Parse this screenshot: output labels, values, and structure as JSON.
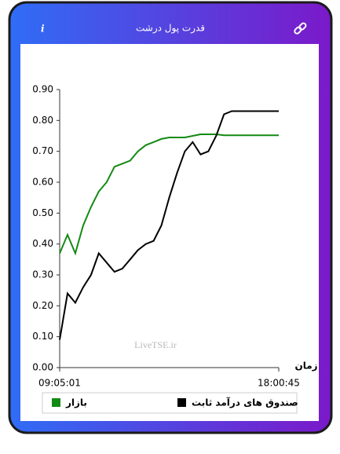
{
  "header": {
    "title": "قدرت پول درشت",
    "info_icon": "i"
  },
  "watermark": "LiveTSE.ir",
  "chart_data": {
    "type": "line",
    "x_label": "زمان",
    "categories": [
      "09:05:01",
      null,
      null,
      null,
      null,
      null,
      null,
      null,
      null,
      null,
      null,
      null,
      null,
      null,
      null,
      null,
      null,
      null,
      null,
      null,
      null,
      null,
      null,
      null,
      null,
      null,
      null,
      null,
      "18:00:45"
    ],
    "series": [
      {
        "name": "بازار",
        "color": "#138a13",
        "values": [
          0.37,
          0.43,
          0.37,
          0.46,
          0.52,
          0.57,
          0.6,
          0.65,
          0.66,
          0.67,
          0.7,
          0.72,
          0.73,
          0.74,
          0.745,
          0.745,
          0.745,
          0.75,
          0.755,
          0.755,
          0.755,
          0.752,
          0.752,
          0.752,
          0.752,
          0.752,
          0.752,
          0.752,
          0.752
        ]
      },
      {
        "name": "صندوق های درآمد ثابت",
        "color": "#000000",
        "values": [
          0.09,
          0.24,
          0.21,
          0.26,
          0.3,
          0.37,
          0.34,
          0.31,
          0.32,
          0.35,
          0.38,
          0.4,
          0.41,
          0.46,
          0.55,
          0.63,
          0.7,
          0.73,
          0.69,
          0.7,
          0.75,
          0.82,
          0.83,
          0.83,
          0.83,
          0.83,
          0.83,
          0.83,
          0.83
        ]
      }
    ],
    "ylim": [
      0,
      0.9
    ],
    "yticks": [
      {
        "value": 0,
        "label": "0.00"
      },
      {
        "value": 0.1,
        "label": "0.10"
      },
      {
        "value": 0.2,
        "label": "0.20"
      },
      {
        "value": 0.3,
        "label": "0.30"
      },
      {
        "value": 0.4,
        "label": "0.40"
      },
      {
        "value": 0.5,
        "label": "0.50"
      },
      {
        "value": 0.6,
        "label": "0.60"
      },
      {
        "value": 0.7,
        "label": "0.70"
      },
      {
        "value": 0.8,
        "label": "0.80"
      },
      {
        "value": 0.9,
        "label": "0.90"
      }
    ],
    "grid": false,
    "legend": "bottom"
  }
}
